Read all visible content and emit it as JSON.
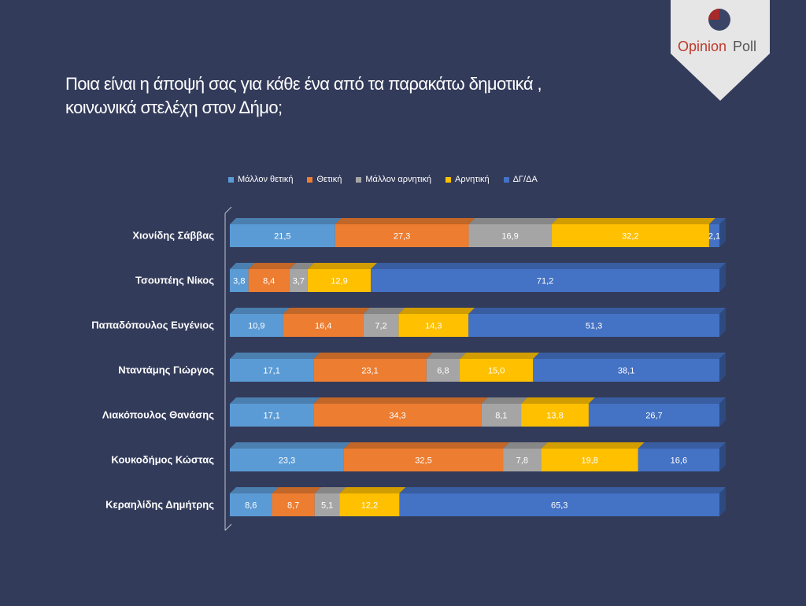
{
  "title": {
    "line1": "Ποια είναι η άποψή σας για κάθε ένα από τα παρακάτω δημοτικά ,",
    "line2": "κοινωνικά στελέχη στον Δήμο;"
  },
  "logo": {
    "text_opinion": "Opinion",
    "text_poll": "Poll",
    "colors": {
      "opinion": "#c0392b",
      "poll": "#555555",
      "pie_red": "#a52a2a",
      "pie_dark": "#3a4466"
    }
  },
  "chart_data": {
    "type": "bar",
    "orientation": "horizontal",
    "stacked": true,
    "percent_stacked": true,
    "categories": [
      "Χιονίδης Σάββας",
      "Τσουπέης Νίκος",
      "Παπαδόπουλος Ευγένιος",
      "Νταντάμης Γιώργος",
      "Λιακόπουλος Θανάσης",
      "Κουκοδήμος Κώστας",
      "Κεραηλίδης Δημήτρης"
    ],
    "series": [
      {
        "name": "Μάλλον θετική",
        "color": "#5b9bd5",
        "values": [
          21.5,
          3.8,
          10.9,
          17.1,
          17.1,
          23.3,
          8.6
        ],
        "labels": [
          "21,5",
          "3,8",
          "10,9",
          "17,1",
          "17,1",
          "23,3",
          "8,6"
        ]
      },
      {
        "name": "Θετική",
        "color": "#ed7d31",
        "values": [
          27.3,
          8.4,
          16.4,
          23.1,
          34.3,
          32.5,
          8.7
        ],
        "labels": [
          "27,3",
          "8,4",
          "16,4",
          "23,1",
          "34,3",
          "32,5",
          "8,7"
        ]
      },
      {
        "name": "Μάλλον αρνητική",
        "color": "#a5a5a5",
        "values": [
          16.9,
          3.7,
          7.2,
          6.8,
          8.1,
          7.8,
          5.1
        ],
        "labels": [
          "16,9",
          "3,7",
          "7,2",
          "6,8",
          "8,1",
          "7,8",
          "5,1"
        ]
      },
      {
        "name": "Αρνητική",
        "color": "#ffc000",
        "values": [
          32.2,
          12.9,
          14.3,
          15.0,
          13.8,
          19.8,
          12.2
        ],
        "labels": [
          "32,2",
          "12,9",
          "14,3",
          "15,0",
          "13,8",
          "19,8",
          "12,2"
        ]
      },
      {
        "name": "ΔΓ/ΔΑ",
        "color": "#4472c4",
        "values": [
          2.1,
          71.2,
          51.3,
          38.1,
          26.7,
          16.6,
          65.3
        ],
        "labels": [
          "2,1",
          "71,2",
          "51,3",
          "38,1",
          "26,7",
          "16,6",
          "65,3"
        ]
      }
    ],
    "legend_position": "top",
    "grid": false,
    "style": "3d"
  }
}
